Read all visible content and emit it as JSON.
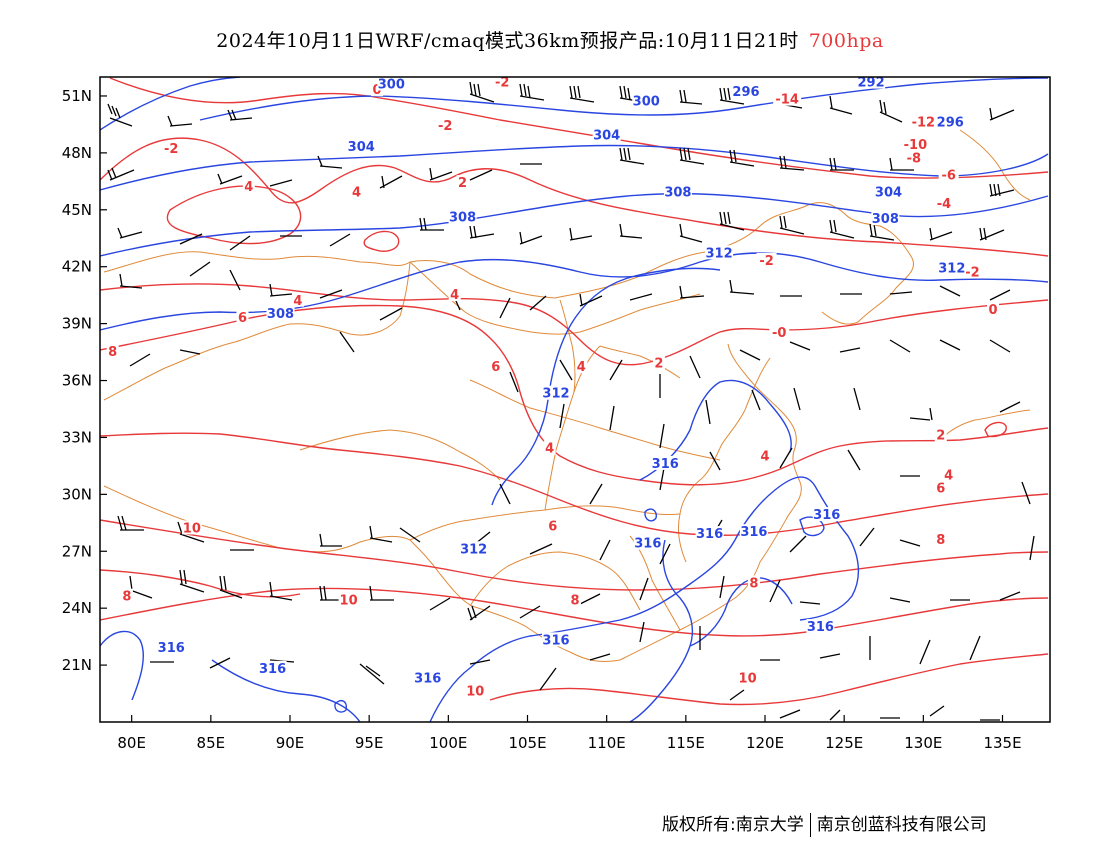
{
  "header": {
    "title": "2024年10月11日WRF/cmaq模式36km预报产品:10月11日21时",
    "level": "700hpa"
  },
  "footer": {
    "copyright_left": "版权所有:南京大学",
    "copyright_right": "南京创蓝科技有限公司"
  },
  "colors": {
    "temperature_contour": "#e8393a",
    "height_contour": "#2a46e0",
    "border": "#e08a3a",
    "wind_barb": "#000000"
  },
  "map": {
    "lon_range": [
      78,
      138
    ],
    "lat_range": [
      18,
      52
    ],
    "lon_ticks": [
      {
        "value": 80,
        "label": "80E"
      },
      {
        "value": 85,
        "label": "85E"
      },
      {
        "value": 90,
        "label": "90E"
      },
      {
        "value": 95,
        "label": "95E"
      },
      {
        "value": 100,
        "label": "100E"
      },
      {
        "value": 105,
        "label": "105E"
      },
      {
        "value": 110,
        "label": "110E"
      },
      {
        "value": 115,
        "label": "115E"
      },
      {
        "value": 120,
        "label": "120E"
      },
      {
        "value": 125,
        "label": "125E"
      },
      {
        "value": 130,
        "label": "130E"
      },
      {
        "value": 135,
        "label": "135E"
      }
    ],
    "lat_ticks": [
      {
        "value": 21,
        "label": "21N"
      },
      {
        "value": 24,
        "label": "24N"
      },
      {
        "value": 27,
        "label": "27N"
      },
      {
        "value": 30,
        "label": "30N"
      },
      {
        "value": 33,
        "label": "33N"
      },
      {
        "value": 36,
        "label": "36N"
      },
      {
        "value": 39,
        "label": "39N"
      },
      {
        "value": 42,
        "label": "42N"
      },
      {
        "value": 45,
        "label": "45N"
      },
      {
        "value": 48,
        "label": "48N"
      },
      {
        "value": 51,
        "label": "51N"
      }
    ],
    "temperature_labels": [
      {
        "text": "-2",
        "lon": 82.5,
        "lat": 48.1
      },
      {
        "text": "0",
        "lon": 95.5,
        "lat": 51.2
      },
      {
        "text": "-2",
        "lon": 99.8,
        "lat": 49.3
      },
      {
        "text": "-2",
        "lon": 103.4,
        "lat": 51.6
      },
      {
        "text": "4",
        "lon": 87.4,
        "lat": 46.1
      },
      {
        "text": "4",
        "lon": 94.2,
        "lat": 45.8
      },
      {
        "text": "2",
        "lon": 100.9,
        "lat": 46.3
      },
      {
        "text": "4",
        "lon": 90.5,
        "lat": 40.1
      },
      {
        "text": "4",
        "lon": 100.4,
        "lat": 40.4
      },
      {
        "text": "6",
        "lon": 87.0,
        "lat": 39.2
      },
      {
        "text": "8",
        "lon": 78.8,
        "lat": 37.4
      },
      {
        "text": "6",
        "lon": 103.0,
        "lat": 36.6
      },
      {
        "text": "4",
        "lon": 108.4,
        "lat": 36.6
      },
      {
        "text": "4",
        "lon": 106.4,
        "lat": 32.3
      },
      {
        "text": "2",
        "lon": 113.3,
        "lat": 36.8
      },
      {
        "text": "-2",
        "lon": 120.1,
        "lat": 42.2
      },
      {
        "text": "-0",
        "lon": 120.9,
        "lat": 38.4
      },
      {
        "text": "-14",
        "lon": 121.4,
        "lat": 50.7
      },
      {
        "text": "-12",
        "lon": 130.0,
        "lat": 49.5
      },
      {
        "text": "-10",
        "lon": 129.5,
        "lat": 48.3
      },
      {
        "text": "-8",
        "lon": 129.4,
        "lat": 47.6
      },
      {
        "text": "-6",
        "lon": 131.6,
        "lat": 46.7
      },
      {
        "text": "-4",
        "lon": 131.3,
        "lat": 45.2
      },
      {
        "text": "-2",
        "lon": 133.1,
        "lat": 41.6
      },
      {
        "text": "0",
        "lon": 134.4,
        "lat": 39.6
      },
      {
        "text": "2",
        "lon": 131.1,
        "lat": 33.0
      },
      {
        "text": "4",
        "lon": 120.0,
        "lat": 31.9
      },
      {
        "text": "4",
        "lon": 131.6,
        "lat": 30.9
      },
      {
        "text": "6",
        "lon": 131.1,
        "lat": 30.2
      },
      {
        "text": "8",
        "lon": 131.1,
        "lat": 27.5
      },
      {
        "text": "6",
        "lon": 106.6,
        "lat": 28.2
      },
      {
        "text": "8",
        "lon": 119.3,
        "lat": 25.2
      },
      {
        "text": "8",
        "lon": 108.0,
        "lat": 24.3
      },
      {
        "text": "10",
        "lon": 83.8,
        "lat": 28.1
      },
      {
        "text": "8",
        "lon": 79.7,
        "lat": 24.5
      },
      {
        "text": "10",
        "lon": 93.7,
        "lat": 24.3
      },
      {
        "text": "10",
        "lon": 101.7,
        "lat": 19.5
      },
      {
        "text": "10",
        "lon": 118.9,
        "lat": 20.2
      }
    ],
    "height_labels": [
      {
        "text": "300",
        "lon": 96.4,
        "lat": 51.5
      },
      {
        "text": "304",
        "lon": 94.5,
        "lat": 48.2
      },
      {
        "text": "304",
        "lon": 110.0,
        "lat": 48.8
      },
      {
        "text": "300",
        "lon": 112.5,
        "lat": 50.6
      },
      {
        "text": "296",
        "lon": 118.8,
        "lat": 51.1
      },
      {
        "text": "292",
        "lon": 126.7,
        "lat": 51.6
      },
      {
        "text": "296",
        "lon": 131.7,
        "lat": 49.5
      },
      {
        "text": "308",
        "lon": 100.9,
        "lat": 44.5
      },
      {
        "text": "308",
        "lon": 114.5,
        "lat": 45.8
      },
      {
        "text": "304",
        "lon": 127.8,
        "lat": 45.8
      },
      {
        "text": "308",
        "lon": 127.6,
        "lat": 44.4
      },
      {
        "text": "312",
        "lon": 117.1,
        "lat": 42.6
      },
      {
        "text": "312",
        "lon": 131.8,
        "lat": 41.8
      },
      {
        "text": "308",
        "lon": 89.4,
        "lat": 39.4
      },
      {
        "text": "312",
        "lon": 106.8,
        "lat": 35.2
      },
      {
        "text": "316",
        "lon": 113.7,
        "lat": 31.5
      },
      {
        "text": "316",
        "lon": 116.5,
        "lat": 27.8
      },
      {
        "text": "316",
        "lon": 112.6,
        "lat": 27.3
      },
      {
        "text": "316",
        "lon": 119.3,
        "lat": 27.9
      },
      {
        "text": "316",
        "lon": 123.9,
        "lat": 28.8
      },
      {
        "text": "312",
        "lon": 101.6,
        "lat": 27.0
      },
      {
        "text": "316",
        "lon": 106.8,
        "lat": 22.2
      },
      {
        "text": "316",
        "lon": 123.5,
        "lat": 22.9
      },
      {
        "text": "316",
        "lon": 82.5,
        "lat": 21.8
      },
      {
        "text": "316",
        "lon": 88.9,
        "lat": 20.7
      },
      {
        "text": "316",
        "lon": 98.7,
        "lat": 20.2
      }
    ]
  }
}
